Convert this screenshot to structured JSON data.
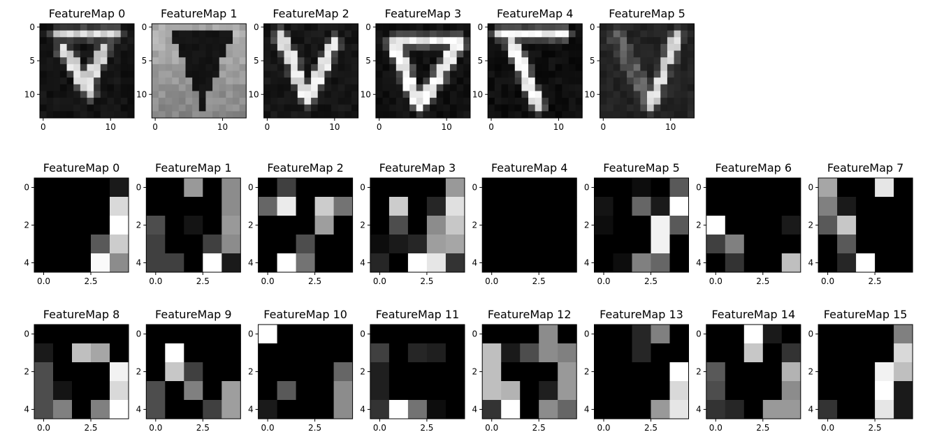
{
  "figure": {
    "rows": [
      {
        "row": "conv1-activations",
        "grid_size": 14,
        "x_ticks": [
          0,
          10
        ],
        "y_ticks": [
          0,
          5,
          10
        ],
        "maps": [
          {
            "title": "FeatureMap 0",
            "shape": "hbar-v",
            "params": {
              "bar_row": 1,
              "bar_x0": 2,
              "bar_x1": 11,
              "left": [
                3,
                1
              ],
              "right": [
                9,
                2
              ],
              "apex": [
                7,
                10
              ],
              "bright": 0.75,
              "bg": 0.04
            }
          },
          {
            "title": "FeatureMap 1",
            "shape": "inv-triangle",
            "params": {
              "bright": 0.6,
              "bg": 0.45,
              "inside": 0.06,
              "top": 1,
              "apex": 12,
              "left": 2,
              "right": 11,
              "cx": 7
            }
          },
          {
            "title": "FeatureMap 2",
            "shape": "v-lines",
            "params": {
              "left": [
                2,
                1
              ],
              "right": [
                10,
                2
              ],
              "apex": [
                6,
                11
              ],
              "bright": 0.8,
              "bg": 0.05
            }
          },
          {
            "title": "FeatureMap 3",
            "shape": "triangle-outline",
            "params": {
              "top": 2,
              "x0": 2,
              "x1": 12,
              "apex": [
                6,
                12
              ],
              "bright": 0.85,
              "bg": 0.03
            }
          },
          {
            "title": "FeatureMap 4",
            "shape": "hbar-left",
            "params": {
              "bar_row": 1,
              "bar_x0": 1,
              "bar_x1": 11,
              "left": [
                3,
                2
              ],
              "apex": [
                7,
                12
              ],
              "bright": 0.85,
              "bg": 0.02
            }
          },
          {
            "title": "FeatureMap 5",
            "shape": "right-line",
            "params": {
              "top": 1,
              "x0": 2,
              "x1": 11,
              "apex": [
                7,
                12
              ],
              "bright": 0.75,
              "bg": 0.1
            }
          }
        ]
      },
      {
        "row": "conv2-activations-a",
        "grid_size": 5,
        "x_ticks": [
          "0.0",
          "2.5"
        ],
        "y_ticks": [
          0,
          2,
          4
        ],
        "maps": [
          {
            "title": "FeatureMap 0",
            "cells": [
              [
                0,
                0,
                0,
                0,
                0.1
              ],
              [
                0,
                0,
                0,
                0,
                0.85
              ],
              [
                0,
                0,
                0,
                0,
                1
              ],
              [
                0,
                0,
                0,
                0.35,
                0.8
              ],
              [
                0,
                0,
                0,
                0.98,
                0.55
              ]
            ]
          },
          {
            "title": "FeatureMap 1",
            "cells": [
              [
                0,
                0,
                0.6,
                0,
                0.55
              ],
              [
                0,
                0,
                0,
                0,
                0.55
              ],
              [
                0.3,
                0,
                0.08,
                0,
                0.6
              ],
              [
                0.25,
                0,
                0,
                0.25,
                0.55
              ],
              [
                0.25,
                0.25,
                0,
                1,
                0.1
              ]
            ]
          },
          {
            "title": "FeatureMap 2",
            "cells": [
              [
                0,
                0.25,
                0,
                0,
                0
              ],
              [
                0.4,
                0.92,
                0,
                0.8,
                0.45
              ],
              [
                0,
                0,
                0,
                0.62,
                0
              ],
              [
                0,
                0,
                0.3,
                0,
                0
              ],
              [
                0,
                1,
                0.45,
                0,
                0
              ]
            ]
          },
          {
            "title": "FeatureMap 3",
            "cells": [
              [
                0,
                0,
                0,
                0,
                0.6
              ],
              [
                0,
                0.8,
                0,
                0.15,
                0.88
              ],
              [
                0,
                0.3,
                0,
                0.55,
                0.78
              ],
              [
                0.05,
                0.1,
                0.15,
                0.62,
                0.65
              ],
              [
                0.15,
                0,
                1,
                0.9,
                0.2
              ]
            ]
          },
          {
            "title": "FeatureMap 4",
            "cells": [
              [
                0,
                0,
                0,
                0,
                0
              ],
              [
                0,
                0,
                0,
                0,
                0
              ],
              [
                0,
                0,
                0,
                0,
                0
              ],
              [
                0,
                0,
                0,
                0,
                0
              ],
              [
                0,
                0,
                0,
                0,
                0
              ]
            ]
          },
          {
            "title": "FeatureMap 5",
            "cells": [
              [
                0,
                0,
                0.05,
                0,
                0.35
              ],
              [
                0.08,
                0,
                0.4,
                0.1,
                1
              ],
              [
                0.05,
                0,
                0,
                0.95,
                0.35
              ],
              [
                0,
                0,
                0,
                0.95,
                0
              ],
              [
                0,
                0.05,
                0.5,
                0.4,
                0
              ]
            ]
          },
          {
            "title": "FeatureMap 6",
            "cells": [
              [
                0,
                0,
                0,
                0,
                0
              ],
              [
                0,
                0,
                0,
                0,
                0
              ],
              [
                1,
                0,
                0,
                0,
                0.1
              ],
              [
                0.25,
                0.5,
                0,
                0,
                0
              ],
              [
                0,
                0.2,
                0,
                0,
                0.75
              ]
            ]
          },
          {
            "title": "FeatureMap 7",
            "cells": [
              [
                0.65,
                0,
                0,
                0.9,
                0
              ],
              [
                0.5,
                0.1,
                0,
                0,
                0
              ],
              [
                0.35,
                0.78,
                0,
                0,
                0
              ],
              [
                0,
                0.35,
                0,
                0,
                0
              ],
              [
                0,
                0.15,
                1,
                0,
                0
              ]
            ]
          }
        ]
      },
      {
        "row": "conv2-activations-b",
        "grid_size": 5,
        "x_ticks": [
          "0.0",
          "2.5"
        ],
        "y_ticks": [
          0,
          2,
          4
        ],
        "maps": [
          {
            "title": "FeatureMap 8",
            "cells": [
              [
                0,
                0,
                0,
                0,
                0
              ],
              [
                0.1,
                0,
                0.75,
                0.65,
                0
              ],
              [
                0.3,
                0,
                0,
                0,
                0.95
              ],
              [
                0.3,
                0.08,
                0,
                0,
                0.85
              ],
              [
                0.3,
                0.5,
                0,
                0.5,
                1
              ]
            ]
          },
          {
            "title": "FeatureMap 9",
            "cells": [
              [
                0,
                0,
                0,
                0,
                0
              ],
              [
                0,
                1,
                0,
                0,
                0
              ],
              [
                0,
                0.78,
                0.25,
                0,
                0
              ],
              [
                0.3,
                0,
                0.5,
                0,
                0.62
              ],
              [
                0.3,
                0,
                0,
                0.25,
                0.62
              ]
            ]
          },
          {
            "title": "FeatureMap 10",
            "cells": [
              [
                1,
                0,
                0,
                0,
                0
              ],
              [
                0,
                0,
                0,
                0,
                0
              ],
              [
                0,
                0,
                0,
                0,
                0.4
              ],
              [
                0,
                0.35,
                0,
                0,
                0.55
              ],
              [
                0.1,
                0,
                0,
                0,
                0.55
              ]
            ]
          },
          {
            "title": "FeatureMap 11",
            "cells": [
              [
                0,
                0,
                0,
                0,
                0
              ],
              [
                0.25,
                0,
                0.15,
                0.12,
                0
              ],
              [
                0.12,
                0,
                0,
                0,
                0
              ],
              [
                0.12,
                0,
                0,
                0,
                0
              ],
              [
                0.2,
                1,
                0.45,
                0.05,
                0
              ]
            ]
          },
          {
            "title": "FeatureMap 12",
            "cells": [
              [
                0,
                0,
                0,
                0.55,
                0
              ],
              [
                0.75,
                0.1,
                0.3,
                0.55,
                0.5
              ],
              [
                0.75,
                0,
                0,
                0,
                0.6
              ],
              [
                0.75,
                0.7,
                0,
                0.12,
                0.6
              ],
              [
                0.2,
                1,
                0,
                0.55,
                0.4
              ]
            ]
          },
          {
            "title": "FeatureMap 13",
            "cells": [
              [
                0,
                0,
                0.15,
                0.5,
                0
              ],
              [
                0,
                0,
                0.15,
                0,
                0
              ],
              [
                0,
                0,
                0,
                0,
                1
              ],
              [
                0,
                0,
                0,
                0,
                0.85
              ],
              [
                0,
                0,
                0,
                0.6,
                0.9
              ]
            ]
          },
          {
            "title": "FeatureMap 14",
            "cells": [
              [
                0,
                0,
                1,
                0.1,
                0
              ],
              [
                0,
                0,
                0.78,
                0,
                0.2
              ],
              [
                0.35,
                0,
                0,
                0,
                0.7
              ],
              [
                0.3,
                0,
                0,
                0,
                0.55
              ],
              [
                0.2,
                0.15,
                0,
                0.6,
                0.6
              ]
            ]
          },
          {
            "title": "FeatureMap 15",
            "cells": [
              [
                0,
                0,
                0,
                0,
                0.5
              ],
              [
                0,
                0,
                0,
                0,
                0.85
              ],
              [
                0,
                0,
                0,
                0.95,
                0.75
              ],
              [
                0,
                0,
                0,
                1,
                0.1
              ],
              [
                0.2,
                0,
                0,
                0.9,
                0.1
              ]
            ]
          }
        ]
      }
    ]
  },
  "chart_data": {
    "type": "heatmap",
    "colormap": "gray",
    "title": "",
    "panels_row_1": [
      "FeatureMap 0",
      "FeatureMap 1",
      "FeatureMap 2",
      "FeatureMap 3",
      "FeatureMap 4",
      "FeatureMap 5"
    ],
    "panels_row_2": [
      "FeatureMap 0",
      "FeatureMap 1",
      "FeatureMap 2",
      "FeatureMap 3",
      "FeatureMap 4",
      "FeatureMap 5",
      "FeatureMap 6",
      "FeatureMap 7"
    ],
    "panels_row_3": [
      "FeatureMap 8",
      "FeatureMap 9",
      "FeatureMap 10",
      "FeatureMap 11",
      "FeatureMap 12",
      "FeatureMap 13",
      "FeatureMap 14",
      "FeatureMap 15"
    ],
    "row_1_grid": "14x14",
    "row_2_3_grid": "5x5",
    "grid": false
  }
}
